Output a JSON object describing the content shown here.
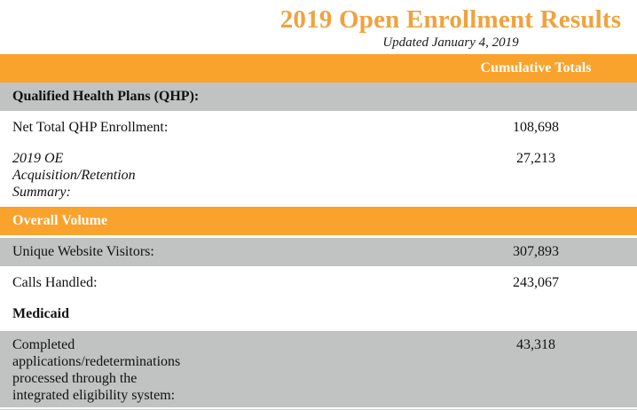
{
  "header": {
    "title": "2019 Open Enrollment Results",
    "subtitle": "Updated January 4, 2019"
  },
  "table": {
    "value_column_header": "Cumulative Totals",
    "rows": [
      {
        "type": "section",
        "bg": "gray",
        "label": "Qualified Health Plans (QHP):",
        "value": ""
      },
      {
        "type": "data",
        "bg": "white",
        "label": "Net Total QHP Enrollment:",
        "value": "108,698"
      },
      {
        "type": "data",
        "bg": "white",
        "italic": true,
        "label": "2019 OE\nAcquisition/Retention\nSummary:",
        "value": "27,213"
      },
      {
        "type": "section",
        "bg": "orange",
        "label": "Overall Volume",
        "value": ""
      },
      {
        "type": "data",
        "bg": "gray",
        "label": "Unique Website Visitors:",
        "value": "307,893"
      },
      {
        "type": "data",
        "bg": "white",
        "label": "Calls Handled:",
        "value": "243,067"
      },
      {
        "type": "section",
        "bg": "white",
        "label": "Medicaid",
        "value": ""
      },
      {
        "type": "data",
        "bg": "gray",
        "label": "Completed\napplications/redeterminations\nprocessed through the\nintegrated eligibility system:",
        "value": "43,318"
      }
    ]
  },
  "colors": {
    "table_orange": "#F9A22C",
    "title_orange": "#F0A23E",
    "row_gray": "#C1C2C2",
    "bottom_line": "#CCCCCC"
  }
}
